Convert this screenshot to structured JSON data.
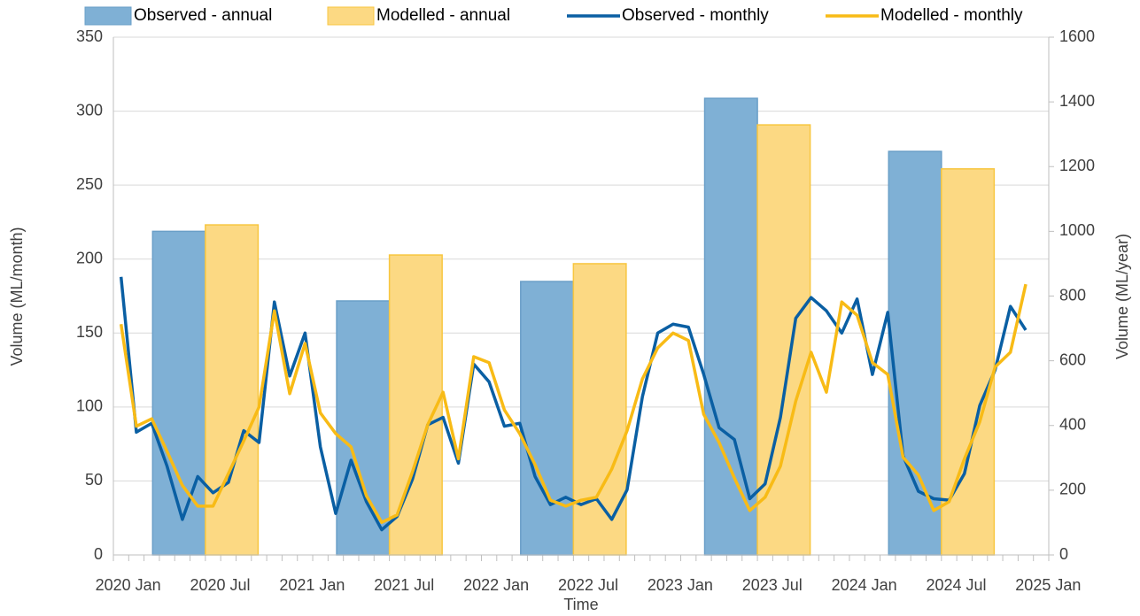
{
  "chart_data": {
    "type": "combo",
    "x_label": "Time",
    "y_label": "Volume (ML/month)",
    "y2_label": "Volume (ML/year)",
    "categories": [
      "2020 Jan",
      null,
      null,
      null,
      null,
      null,
      "2020 Jul",
      null,
      null,
      null,
      null,
      null,
      "2021 Jan",
      null,
      null,
      null,
      null,
      null,
      "2021 Jul",
      null,
      null,
      null,
      null,
      null,
      "2022 Jan",
      null,
      null,
      null,
      null,
      null,
      "2022 Jul",
      null,
      null,
      null,
      null,
      null,
      "2023 Jan",
      null,
      null,
      null,
      null,
      null,
      "2023 Jul",
      null,
      null,
      null,
      null,
      null,
      "2024 Jan",
      null,
      null,
      null,
      null,
      null,
      "2024 Jul",
      null,
      null,
      null,
      null,
      null,
      "2025 Jan"
    ],
    "ylim": [
      0,
      350
    ],
    "yticks": [
      0,
      50,
      100,
      150,
      200,
      250,
      300,
      350
    ],
    "y2lim": [
      0,
      1600
    ],
    "y2ticks": [
      0,
      200,
      400,
      600,
      800,
      1000,
      1200,
      1400,
      1600
    ],
    "grid": true,
    "legend": "top",
    "series": [
      {
        "name": "Observed - annual",
        "type": "bar",
        "axis": "y2",
        "color": "#7fb0d5",
        "edge": "#6a9fc8",
        "values": [
          null,
          null,
          null,
          null,
          null,
          null,
          1000,
          null,
          null,
          null,
          null,
          null,
          null,
          null,
          null,
          null,
          null,
          null,
          785,
          null,
          null,
          null,
          null,
          null,
          null,
          null,
          null,
          null,
          null,
          null,
          845,
          null,
          null,
          null,
          null,
          null,
          null,
          null,
          null,
          null,
          null,
          null,
          1411,
          null,
          null,
          null,
          null,
          null,
          null,
          null,
          null,
          null,
          null,
          null,
          1247,
          null,
          null,
          null,
          null,
          null,
          null
        ]
      },
      {
        "name": "Modelled - annual",
        "type": "bar",
        "axis": "y2",
        "color": "#fcd983",
        "edge": "#f8c640",
        "values": [
          null,
          null,
          null,
          null,
          null,
          null,
          1020,
          null,
          null,
          null,
          null,
          null,
          null,
          null,
          null,
          null,
          null,
          null,
          927,
          null,
          null,
          null,
          null,
          null,
          null,
          null,
          null,
          null,
          null,
          null,
          900,
          null,
          null,
          null,
          null,
          null,
          null,
          null,
          null,
          null,
          null,
          null,
          1329,
          null,
          null,
          null,
          null,
          null,
          null,
          null,
          null,
          null,
          null,
          null,
          1193,
          null,
          null,
          null,
          null,
          null,
          null
        ]
      },
      {
        "name": "Observed - monthly",
        "type": "line",
        "color": "#0a5fa3",
        "values": [
          188,
          83,
          89,
          60,
          24,
          53,
          42,
          49,
          84,
          76,
          171,
          121,
          150,
          73,
          28,
          64,
          36,
          17,
          26,
          51,
          88,
          93,
          62,
          129,
          117,
          87,
          89,
          53,
          34,
          39,
          34,
          38,
          24,
          44,
          107,
          150,
          156,
          154,
          122,
          86,
          78,
          38,
          48,
          93,
          160,
          174,
          165,
          150,
          173,
          122,
          164,
          67,
          43,
          38,
          37,
          55,
          101,
          125,
          168,
          152,
          null
        ]
      },
      {
        "name": "Modelled - monthly",
        "type": "line",
        "color": "#f8bb16",
        "values": [
          156,
          87,
          92,
          70,
          47,
          33,
          33,
          55,
          77,
          100,
          165,
          109,
          143,
          96,
          82,
          73,
          40,
          22,
          27,
          56,
          88,
          110,
          65,
          134,
          130,
          98,
          82,
          61,
          37,
          33,
          37,
          39,
          58,
          84,
          119,
          140,
          150,
          145,
          95,
          76,
          52,
          30,
          39,
          60,
          104,
          137,
          110,
          171,
          162,
          130,
          122,
          66,
          54,
          30,
          36,
          65,
          90,
          127,
          137,
          183,
          null
        ]
      }
    ]
  }
}
